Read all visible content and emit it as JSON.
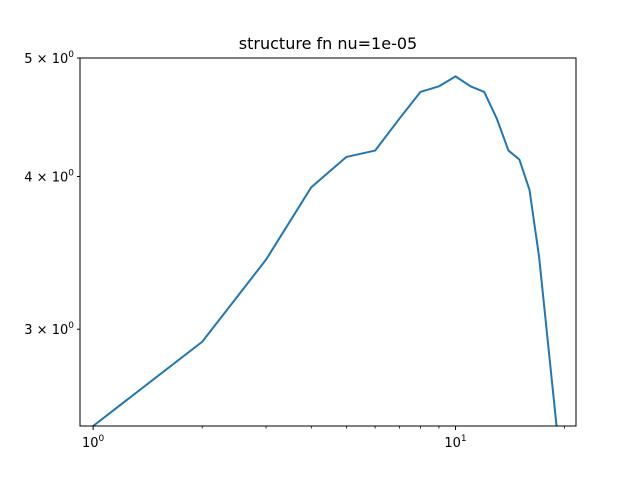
{
  "chart_data": {
    "type": "line",
    "title": "structure fn nu=1e-05",
    "xlabel": "",
    "ylabel": "",
    "xscale": "log",
    "yscale": "log",
    "xlim": [
      0.92,
      21.5
    ],
    "ylim": [
      2.5,
      5.0
    ],
    "grid": false,
    "color": "#1f77b4",
    "x_major_ticks": [
      {
        "value": 1,
        "label": "10^0"
      },
      {
        "value": 10,
        "label": "10^1"
      }
    ],
    "x_minor_ticks": [
      2,
      3,
      4,
      5,
      6,
      7,
      8,
      9,
      20
    ],
    "y_ticks": [
      {
        "value": 3,
        "label": "3 × 10^0"
      },
      {
        "value": 4,
        "label": "4 × 10^0"
      },
      {
        "value": 5,
        "label": "5 × 10^0"
      }
    ],
    "series": [
      {
        "x": [
          1,
          2,
          3,
          4,
          5,
          6,
          7,
          8,
          9,
          10,
          11,
          12,
          13,
          14,
          15,
          16,
          17,
          18,
          19
        ],
        "y": [
          2.5,
          2.93,
          3.42,
          3.92,
          4.15,
          4.2,
          4.46,
          4.69,
          4.74,
          4.83,
          4.74,
          4.69,
          4.46,
          4.2,
          4.13,
          3.9,
          3.44,
          2.92,
          2.5
        ]
      }
    ]
  }
}
